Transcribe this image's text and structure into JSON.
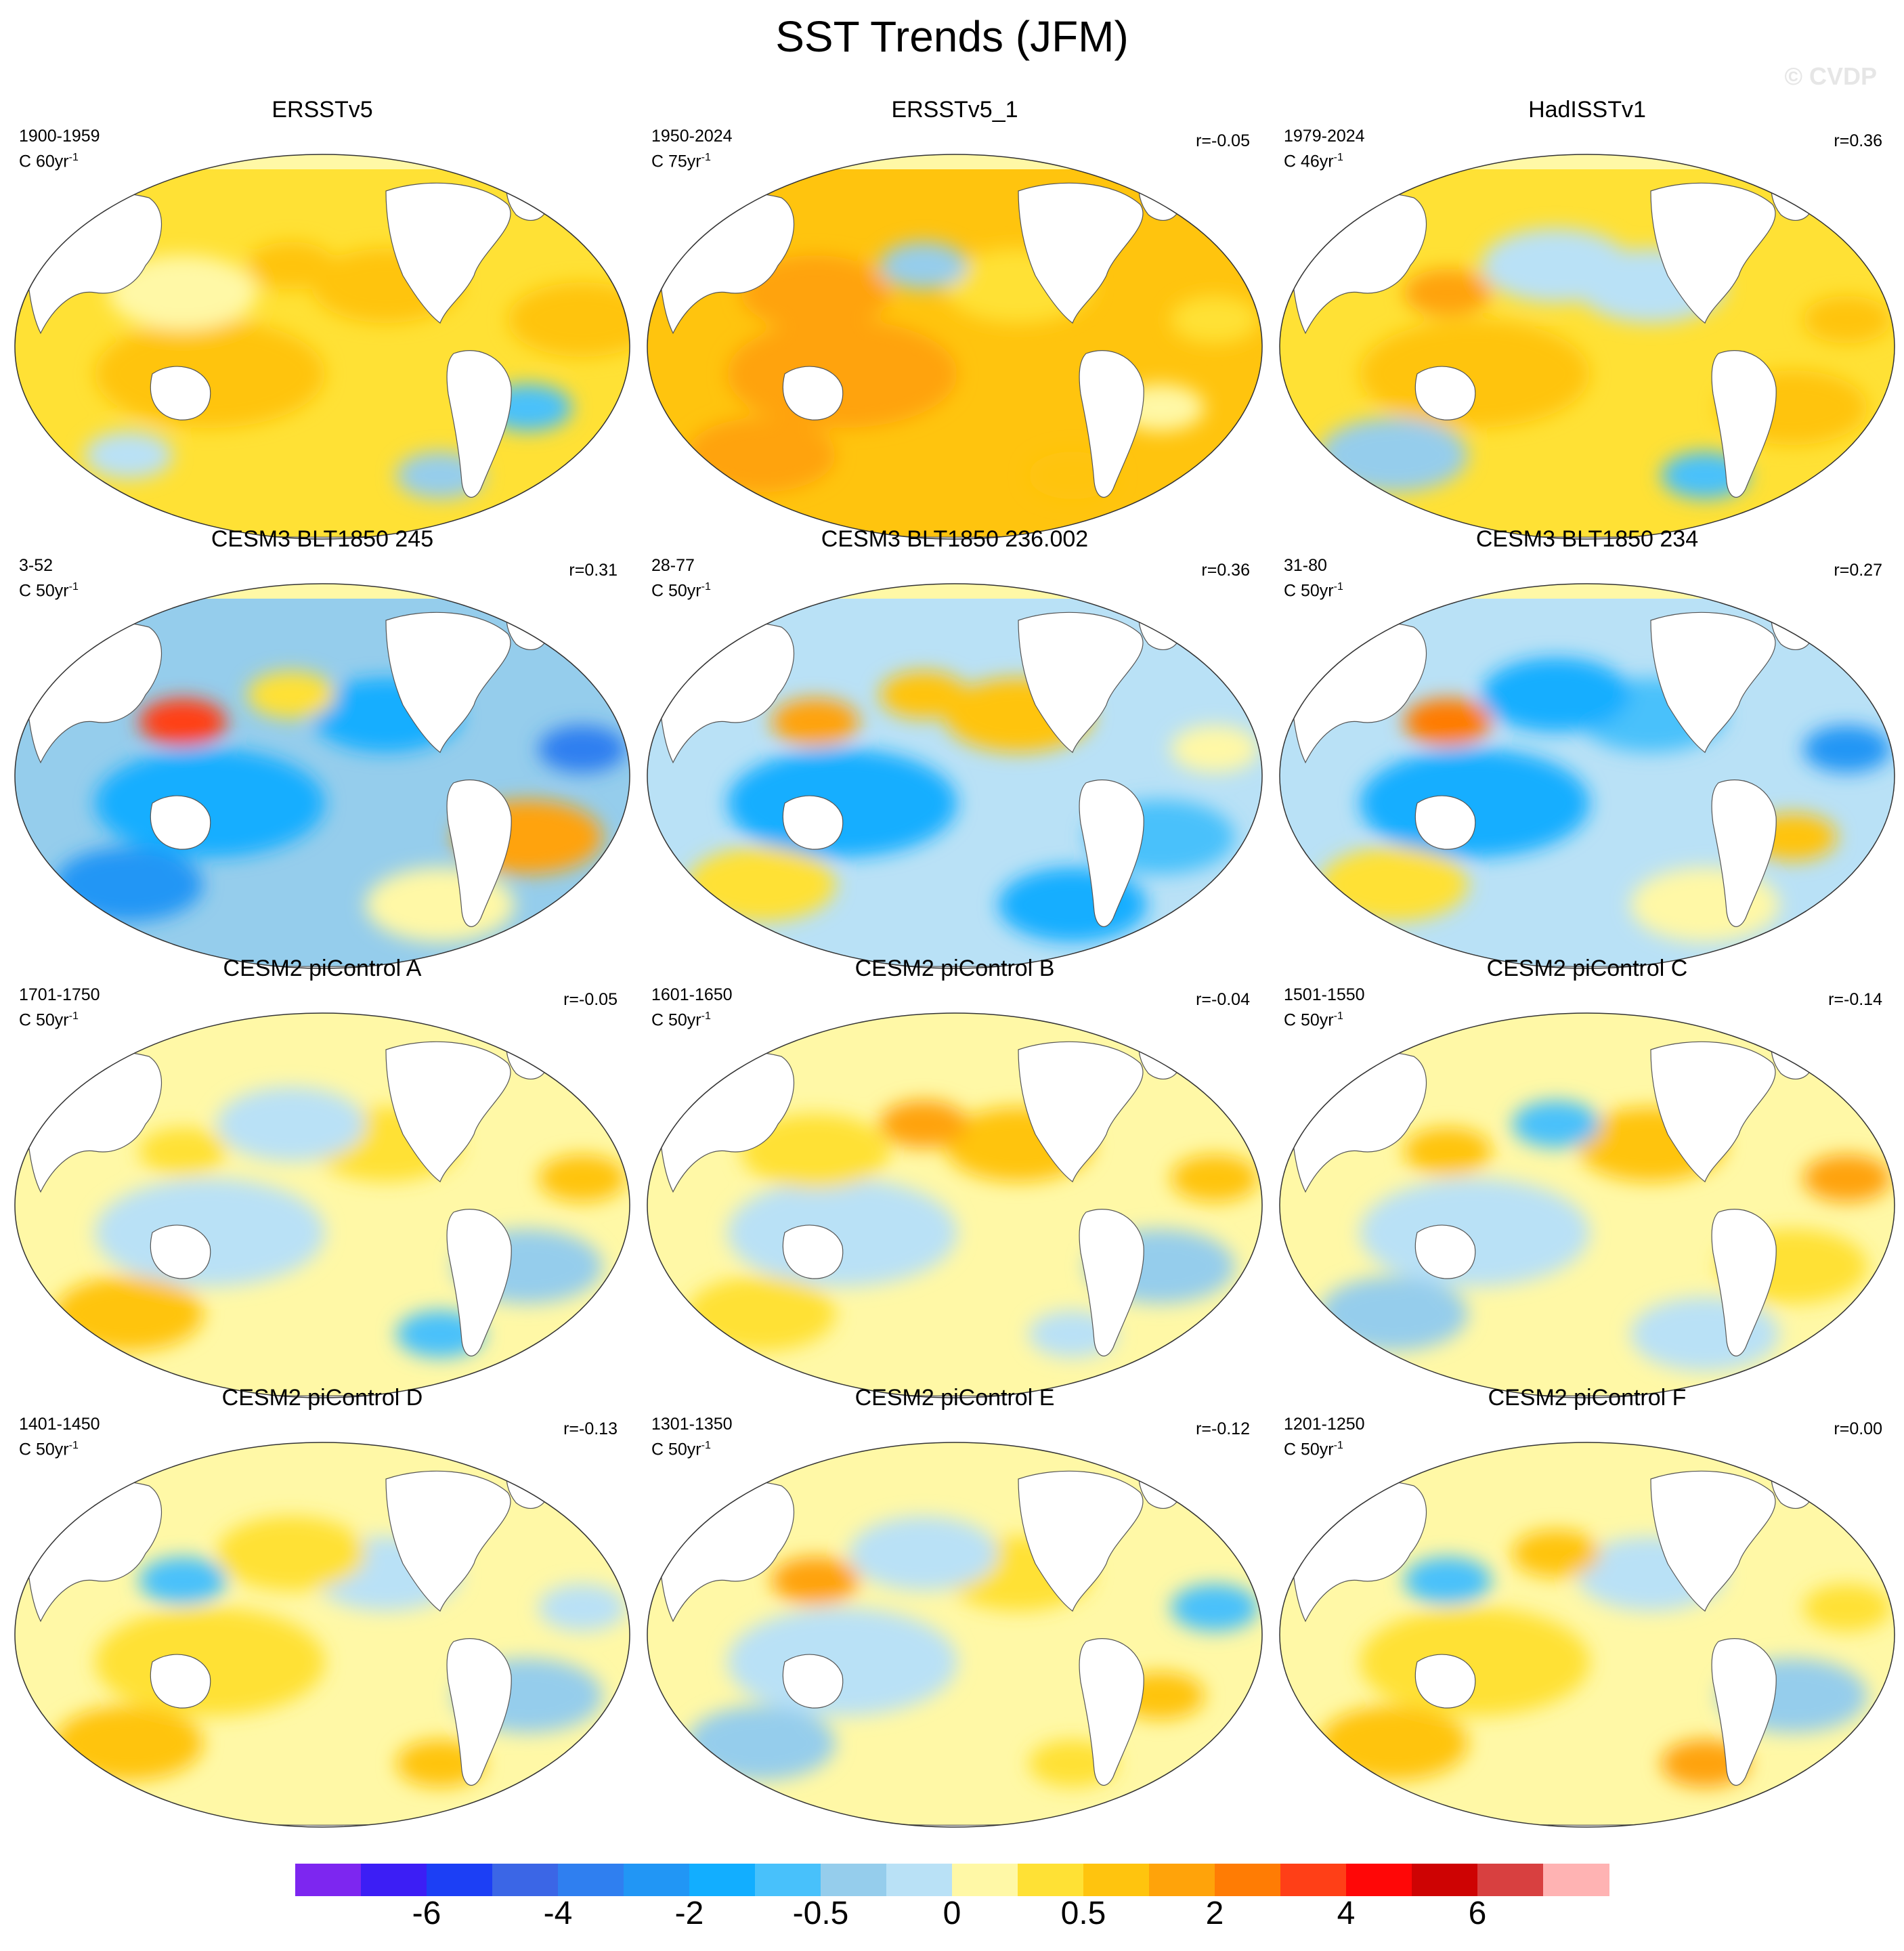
{
  "title": "SST Trends (JFM)",
  "watermark": "© CVDP",
  "panels": [
    {
      "title": "ERSSTv5",
      "period": "1900-1959",
      "unit": "C 60yr",
      "exp": "-1",
      "r": "",
      "theme": "warm1"
    },
    {
      "title": "ERSSTv5_1",
      "period": "1950-2024",
      "unit": "C 75yr",
      "exp": "-1",
      "r": "r=-0.05",
      "theme": "warm2"
    },
    {
      "title": "HadISSTv1",
      "period": "1979-2024",
      "unit": "C 46yr",
      "exp": "-1",
      "r": "r=0.36",
      "theme": "had"
    },
    {
      "title": "CESM3 BLT1850 245",
      "period": "3-52",
      "unit": "C 50yr",
      "exp": "-1",
      "r": "r=0.31",
      "theme": "cool1"
    },
    {
      "title": "CESM3 BLT1850 236.002",
      "period": "28-77",
      "unit": "C 50yr",
      "exp": "-1",
      "r": "r=0.36",
      "theme": "cool2"
    },
    {
      "title": "CESM3 BLT1850 234",
      "period": "31-80",
      "unit": "C 50yr",
      "exp": "-1",
      "r": "r=0.27",
      "theme": "cool3"
    },
    {
      "title": "CESM2 piControl A",
      "period": "1701-1750",
      "unit": "C 50yr",
      "exp": "-1",
      "r": "r=-0.05",
      "theme": "mix1"
    },
    {
      "title": "CESM2 piControl B",
      "period": "1601-1650",
      "unit": "C 50yr",
      "exp": "-1",
      "r": "r=-0.04",
      "theme": "mix2"
    },
    {
      "title": "CESM2 piControl C",
      "period": "1501-1550",
      "unit": "C 50yr",
      "exp": "-1",
      "r": "r=-0.14",
      "theme": "mix3"
    },
    {
      "title": "CESM2 piControl D",
      "period": "1401-1450",
      "unit": "C 50yr",
      "exp": "-1",
      "r": "r=-0.13",
      "theme": "mix4"
    },
    {
      "title": "CESM2 piControl E",
      "period": "1301-1350",
      "unit": "C 50yr",
      "exp": "-1",
      "r": "r=-0.12",
      "theme": "mix5"
    },
    {
      "title": "CESM2 piControl F",
      "period": "1201-1250",
      "unit": "C 50yr",
      "exp": "-1",
      "r": "r=0.00",
      "theme": "mix6"
    }
  ],
  "colorbar": {
    "colors": [
      "#7d26f0",
      "#3c1ef5",
      "#1c3ff5",
      "#3b66e6",
      "#2f7ff0",
      "#2196f5",
      "#12aeff",
      "#48c1fb",
      "#95cdec",
      "#b9e1f6",
      "#fff8a6",
      "#ffe135",
      "#ffc40e",
      "#ffa30a",
      "#ff7c04",
      "#ff3f17",
      "#ff0707",
      "#ce0303",
      "#d84040",
      "#ffb3b3"
    ],
    "labels": [
      "-6",
      "-4",
      "-2",
      "-0.5",
      "0",
      "0.5",
      "2",
      "4",
      "6"
    ]
  }
}
